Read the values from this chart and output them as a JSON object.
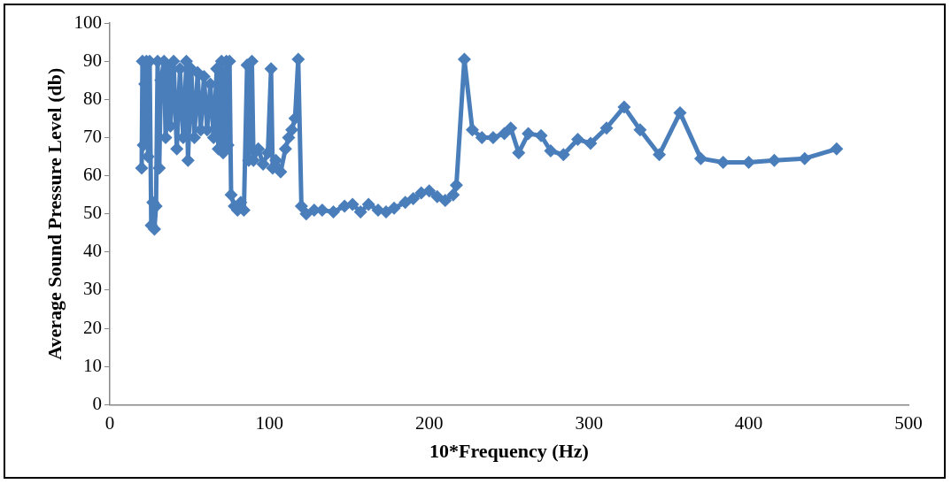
{
  "chart_data": {
    "type": "line",
    "xlabel": "10*Frequency (Hz)",
    "ylabel": "Average Sound Pressure Level (db)",
    "xlim": [
      0,
      500
    ],
    "xticks": [
      0,
      100,
      200,
      300,
      400,
      500
    ],
    "ylim": [
      0,
      100
    ],
    "yticks": [
      0,
      10,
      20,
      30,
      40,
      50,
      60,
      70,
      80,
      90,
      100
    ],
    "grid": false,
    "legend": false,
    "marker": "diamond",
    "line_style": "solid",
    "series": [
      {
        "color": "#4a7ebb",
        "x": [
          20,
          20.5,
          21,
          22,
          23,
          24,
          25,
          26,
          27,
          28,
          29,
          30,
          31,
          32,
          34,
          35,
          37,
          38,
          40,
          42,
          44,
          46,
          48,
          49,
          51,
          53,
          55,
          57,
          59,
          61,
          63,
          65,
          67,
          68,
          70,
          71,
          73,
          74,
          75,
          76,
          78,
          80,
          82,
          84,
          86,
          87,
          89,
          90,
          93,
          96,
          99,
          101,
          102,
          104,
          107,
          110,
          112,
          114,
          116,
          118,
          120,
          123,
          128,
          133,
          140,
          147,
          152,
          157,
          162,
          168,
          173,
          178,
          185,
          190,
          195,
          200,
          205,
          210,
          215,
          217,
          222,
          227,
          233,
          240,
          247,
          251,
          256,
          262,
          270,
          276,
          284,
          293,
          301,
          311,
          322,
          332,
          344,
          357,
          370,
          384,
          400,
          416,
          435,
          455
        ],
        "values": [
          62,
          90,
          68,
          84,
          90,
          65,
          90,
          47,
          53,
          46,
          52,
          90,
          62,
          85,
          90,
          70,
          88,
          73,
          90,
          67,
          88,
          70,
          90,
          64,
          88,
          70,
          87,
          72,
          86,
          72,
          84,
          70,
          88,
          67,
          90,
          66,
          90,
          68,
          90,
          55,
          52,
          51,
          53,
          51,
          89,
          64,
          90,
          64,
          67,
          63,
          66,
          88,
          62,
          64,
          61,
          67,
          70,
          72,
          75,
          90.5,
          52,
          50,
          51,
          51,
          50.5,
          52,
          52.5,
          50.5,
          52.5,
          51,
          50.5,
          51.5,
          53,
          54,
          55.5,
          56,
          54.5,
          53.5,
          55,
          57.5,
          90.5,
          72,
          70,
          70,
          71,
          72.5,
          66,
          71,
          70.5,
          66.5,
          65.5,
          69.5,
          68.5,
          72.5,
          78,
          72,
          65.5,
          76.5,
          64.5,
          63.5,
          63.5,
          64,
          64.5,
          67
        ]
      }
    ]
  }
}
